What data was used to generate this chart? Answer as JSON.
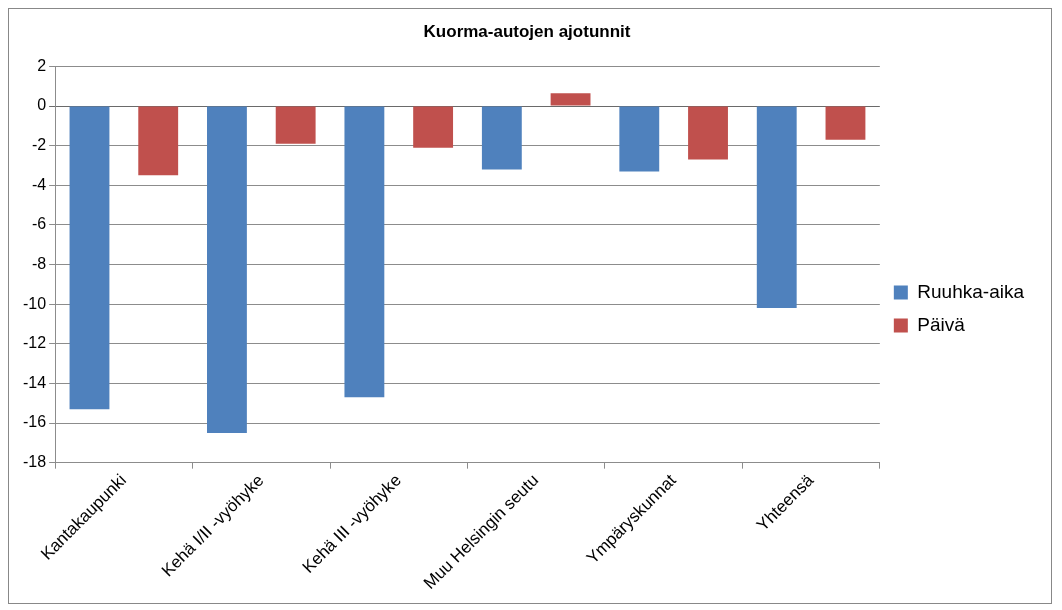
{
  "chart_data": {
    "type": "bar",
    "title": "Kuorma-autojen ajotunnit",
    "categories": [
      "Kantakaupunki",
      "Kehä I/II -vyöhyke",
      "Kehä III -vyöhyke",
      "Muu Helsingin seutu",
      "Ympäryskunnat",
      "Yhteensä"
    ],
    "series": [
      {
        "name": "Ruuhka-aika",
        "color": "#4f81bd",
        "values": [
          -15.3,
          -16.5,
          -14.7,
          -3.2,
          -3.3,
          -10.2
        ]
      },
      {
        "name": "Päivä",
        "color": "#c0504d",
        "values": [
          -3.5,
          -1.9,
          -2.1,
          0.65,
          -2.7,
          -1.7
        ]
      }
    ],
    "ylim": [
      -18,
      2
    ],
    "yticks": [
      -18,
      -16,
      -14,
      -12,
      -10,
      -8,
      -6,
      -4,
      -2,
      0,
      2
    ],
    "grid": "y",
    "legend": "right"
  }
}
